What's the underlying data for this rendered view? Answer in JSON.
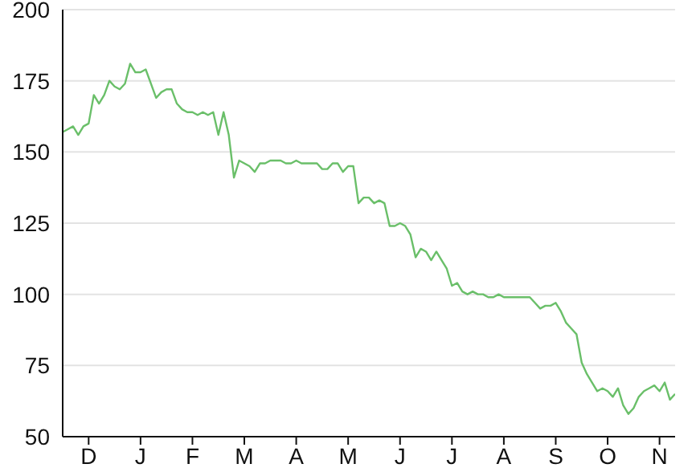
{
  "chart_data": {
    "type": "line",
    "categories": [
      null,
      null,
      null,
      null,
      null,
      "D",
      null,
      null,
      null,
      null,
      null,
      null,
      null,
      null,
      null,
      "J",
      null,
      null,
      null,
      null,
      null,
      null,
      null,
      null,
      null,
      "F",
      null,
      null,
      null,
      null,
      null,
      null,
      null,
      null,
      null,
      "M",
      null,
      null,
      null,
      null,
      null,
      null,
      null,
      null,
      null,
      "A",
      null,
      null,
      null,
      null,
      null,
      null,
      null,
      null,
      null,
      "M",
      null,
      null,
      null,
      null,
      null,
      null,
      null,
      null,
      null,
      "J",
      null,
      null,
      null,
      null,
      null,
      null,
      null,
      null,
      null,
      "J",
      null,
      null,
      null,
      null,
      null,
      null,
      null,
      null,
      null,
      "A",
      null,
      null,
      null,
      null,
      null,
      null,
      null,
      null,
      null,
      "S",
      null,
      null,
      null,
      null,
      null,
      null,
      null,
      null,
      null,
      "O",
      null,
      null,
      null,
      null,
      null,
      null,
      null,
      null,
      null,
      "N",
      null,
      null,
      null
    ],
    "series": [
      {
        "color": "#6abf69",
        "values": [
          157,
          158,
          159,
          156,
          159,
          160,
          170,
          167,
          170,
          175,
          173,
          172,
          174,
          181,
          178,
          178,
          179,
          174,
          169,
          171,
          172,
          172,
          167,
          165,
          164,
          164,
          163,
          164,
          163,
          164,
          156,
          164,
          156,
          141,
          147,
          146,
          145,
          143,
          146,
          146,
          147,
          147,
          147,
          146,
          146,
          147,
          146,
          146,
          146,
          146,
          144,
          144,
          146,
          146,
          143,
          145,
          145,
          132,
          134,
          134,
          132,
          133,
          132,
          124,
          124,
          125,
          124,
          121,
          113,
          116,
          115,
          112,
          115,
          112,
          109,
          103,
          104,
          101,
          100,
          101,
          100,
          100,
          99,
          99,
          100,
          99,
          99,
          99,
          99,
          99,
          99,
          97,
          95,
          96,
          96,
          97,
          94,
          90,
          88,
          86,
          76,
          72,
          69,
          66,
          67,
          66,
          64,
          67,
          61,
          58,
          60,
          64,
          66,
          67,
          68,
          66,
          69,
          63,
          65
        ]
      }
    ],
    "ylim": [
      50,
      200
    ],
    "yticks": [
      50,
      75,
      100,
      125,
      150,
      175,
      200
    ],
    "grid": "y",
    "marker": "none",
    "line_style": "solid"
  }
}
